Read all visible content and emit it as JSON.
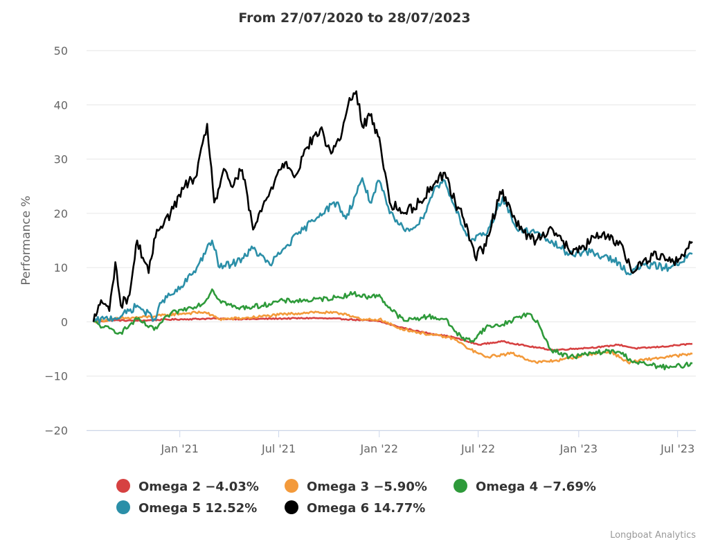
{
  "chart_data": {
    "type": "line",
    "title": "From 27/07/2020 to 28/07/2023",
    "xlabel": "",
    "ylabel": "Performance %",
    "ylim": [
      -20,
      50
    ],
    "yticks": [
      "−20",
      "−10",
      "0",
      "10",
      "20",
      "30",
      "40",
      "50"
    ],
    "ytick_values": [
      -20,
      -10,
      0,
      10,
      20,
      30,
      40,
      50
    ],
    "xlim": [
      "2020-07-27",
      "2023-07-28"
    ],
    "xticks": [
      {
        "label": "Jan '21",
        "date": "2021-01-01"
      },
      {
        "label": "Jul '21",
        "date": "2021-07-01"
      },
      {
        "label": "Jan '22",
        "date": "2022-01-01"
      },
      {
        "label": "Jul '22",
        "date": "2022-07-01"
      },
      {
        "label": "Jan '23",
        "date": "2023-01-01"
      },
      {
        "label": "Jul '23",
        "date": "2023-07-01"
      }
    ],
    "grid": true,
    "legend_position": "bottom",
    "series": [
      {
        "name": "Omega 2",
        "legend_label": "Omega 2 −4.03%",
        "final": "-4.03%",
        "color": "#d64141",
        "points": [
          [
            "2020-07-27",
            0
          ],
          [
            "2020-09-01",
            0.3
          ],
          [
            "2020-10-15",
            0.2
          ],
          [
            "2020-12-01",
            0.4
          ],
          [
            "2021-01-15",
            0.5
          ],
          [
            "2021-03-01",
            0.6
          ],
          [
            "2021-05-01",
            0.5
          ],
          [
            "2021-07-01",
            0.6
          ],
          [
            "2021-09-01",
            0.7
          ],
          [
            "2021-11-01",
            0.5
          ],
          [
            "2022-01-01",
            0.1
          ],
          [
            "2022-02-01",
            -0.8
          ],
          [
            "2022-03-15",
            -1.8
          ],
          [
            "2022-05-15",
            -2.8
          ],
          [
            "2022-07-01",
            -4.2
          ],
          [
            "2022-08-15",
            -3.6
          ],
          [
            "2022-10-01",
            -4.5
          ],
          [
            "2022-11-15",
            -5.2
          ],
          [
            "2023-01-01",
            -4.9
          ],
          [
            "2023-02-15",
            -4.6
          ],
          [
            "2023-03-15",
            -4.2
          ],
          [
            "2023-04-15",
            -4.9
          ],
          [
            "2023-06-01",
            -4.6
          ],
          [
            "2023-07-28",
            -4.03
          ]
        ]
      },
      {
        "name": "Omega 3",
        "legend_label": "Omega 3 −5.90%",
        "final": "-5.90%",
        "color": "#f39a3b",
        "points": [
          [
            "2020-07-27",
            0
          ],
          [
            "2020-09-01",
            0.5
          ],
          [
            "2020-11-15",
            1.0
          ],
          [
            "2021-01-01",
            1.5
          ],
          [
            "2021-02-15",
            1.8
          ],
          [
            "2021-03-15",
            0.5
          ],
          [
            "2021-05-01",
            0.7
          ],
          [
            "2021-07-01",
            1.3
          ],
          [
            "2021-09-01",
            1.8
          ],
          [
            "2021-11-01",
            1.5
          ],
          [
            "2021-12-01",
            0.3
          ],
          [
            "2022-01-01",
            0.5
          ],
          [
            "2022-02-01",
            -1.0
          ],
          [
            "2022-03-15",
            -2.0
          ],
          [
            "2022-05-15",
            -3.0
          ],
          [
            "2022-06-15",
            -5.0
          ],
          [
            "2022-07-15",
            -6.5
          ],
          [
            "2022-09-01",
            -5.8
          ],
          [
            "2022-10-15",
            -7.5
          ],
          [
            "2022-12-01",
            -7.0
          ],
          [
            "2023-01-15",
            -6.0
          ],
          [
            "2023-03-01",
            -5.5
          ],
          [
            "2023-04-01",
            -7.5
          ],
          [
            "2023-05-15",
            -6.8
          ],
          [
            "2023-07-28",
            -5.9
          ]
        ]
      },
      {
        "name": "Omega 4",
        "legend_label": "Omega 4 −7.69%",
        "final": "-7.69%",
        "color": "#2e9a3a",
        "points": [
          [
            "2020-07-27",
            0
          ],
          [
            "2020-08-15",
            -1.0
          ],
          [
            "2020-09-15",
            -2.0
          ],
          [
            "2020-10-15",
            0.5
          ],
          [
            "2020-11-15",
            -1.5
          ],
          [
            "2020-12-15",
            1.5
          ],
          [
            "2021-01-15",
            2.5
          ],
          [
            "2021-02-15",
            3.5
          ],
          [
            "2021-03-01",
            6.0
          ],
          [
            "2021-03-15",
            4.0
          ],
          [
            "2021-04-15",
            2.5
          ],
          [
            "2021-06-01",
            3.0
          ],
          [
            "2021-07-01",
            3.8
          ],
          [
            "2021-09-01",
            4.0
          ],
          [
            "2021-10-15",
            4.5
          ],
          [
            "2021-11-15",
            5.2
          ],
          [
            "2021-12-15",
            4.5
          ],
          [
            "2022-01-01",
            5.0
          ],
          [
            "2022-01-15",
            3.0
          ],
          [
            "2022-02-15",
            0.2
          ],
          [
            "2022-04-01",
            1.0
          ],
          [
            "2022-05-01",
            0.5
          ],
          [
            "2022-06-01",
            -3.0
          ],
          [
            "2022-06-20",
            -3.5
          ],
          [
            "2022-07-15",
            -1.0
          ],
          [
            "2022-08-15",
            -0.5
          ],
          [
            "2022-09-15",
            1.0
          ],
          [
            "2022-10-01",
            1.5
          ],
          [
            "2022-10-20",
            -0.5
          ],
          [
            "2022-11-10",
            -5.0
          ],
          [
            "2022-12-15",
            -6.5
          ],
          [
            "2023-01-15",
            -6.0
          ],
          [
            "2023-02-15",
            -5.5
          ],
          [
            "2023-03-15",
            -5.5
          ],
          [
            "2023-04-15",
            -7.5
          ],
          [
            "2023-05-15",
            -8.0
          ],
          [
            "2023-06-15",
            -8.5
          ],
          [
            "2023-07-28",
            -7.69
          ]
        ]
      },
      {
        "name": "Omega 5",
        "legend_label": "Omega 5 12.52%",
        "final": "12.52%",
        "color": "#2b8fa8",
        "points": [
          [
            "2020-07-27",
            0
          ],
          [
            "2020-08-15",
            0.5
          ],
          [
            "2020-09-15",
            1.0
          ],
          [
            "2020-10-15",
            3.0
          ],
          [
            "2020-11-15",
            0.5
          ],
          [
            "2020-12-01",
            4.0
          ],
          [
            "2021-01-01",
            6.0
          ],
          [
            "2021-02-01",
            10.0
          ],
          [
            "2021-03-01",
            15.0
          ],
          [
            "2021-03-15",
            10.0
          ],
          [
            "2021-04-15",
            11.0
          ],
          [
            "2021-05-15",
            13.5
          ],
          [
            "2021-06-15",
            10.5
          ],
          [
            "2021-07-15",
            14.0
          ],
          [
            "2021-08-15",
            17.0
          ],
          [
            "2021-09-15",
            20.0
          ],
          [
            "2021-10-15",
            22.0
          ],
          [
            "2021-11-01",
            19.0
          ],
          [
            "2021-12-01",
            26.5
          ],
          [
            "2021-12-15",
            22.0
          ],
          [
            "2022-01-01",
            26.0
          ],
          [
            "2022-01-20",
            20.0
          ],
          [
            "2022-02-15",
            17.0
          ],
          [
            "2022-03-15",
            18.0
          ],
          [
            "2022-04-15",
            25.0
          ],
          [
            "2022-05-01",
            26.0
          ],
          [
            "2022-05-20",
            21.0
          ],
          [
            "2022-06-15",
            15.0
          ],
          [
            "2022-07-15",
            16.0
          ],
          [
            "2022-08-15",
            23.0
          ],
          [
            "2022-09-10",
            17.0
          ],
          [
            "2022-10-15",
            16.5
          ],
          [
            "2022-11-15",
            14.5
          ],
          [
            "2022-12-15",
            12.5
          ],
          [
            "2023-01-15",
            13.0
          ],
          [
            "2023-02-15",
            12.0
          ],
          [
            "2023-03-15",
            11.0
          ],
          [
            "2023-04-01",
            9.0
          ],
          [
            "2023-05-01",
            10.5
          ],
          [
            "2023-06-15",
            10.0
          ],
          [
            "2023-07-28",
            12.52
          ]
        ]
      },
      {
        "name": "Omega 6",
        "legend_label": "Omega 6 14.77%",
        "final": "14.77%",
        "color": "#000000",
        "points": [
          [
            "2020-07-27",
            0
          ],
          [
            "2020-08-10",
            4.0
          ],
          [
            "2020-08-25",
            2.0
          ],
          [
            "2020-09-05",
            11.0
          ],
          [
            "2020-09-15",
            3.0
          ],
          [
            "2020-10-01",
            5.0
          ],
          [
            "2020-10-15",
            15.0
          ],
          [
            "2020-11-05",
            9.0
          ],
          [
            "2020-11-20",
            17.0
          ],
          [
            "2020-12-15",
            20.0
          ],
          [
            "2021-01-10",
            25.0
          ],
          [
            "2021-02-01",
            27.0
          ],
          [
            "2021-02-20",
            36.5
          ],
          [
            "2021-03-05",
            22.0
          ],
          [
            "2021-03-25",
            28.0
          ],
          [
            "2021-04-05",
            25.0
          ],
          [
            "2021-04-25",
            28.0
          ],
          [
            "2021-05-15",
            17.0
          ],
          [
            "2021-06-15",
            24.0
          ],
          [
            "2021-07-01",
            28.0
          ],
          [
            "2021-07-15",
            29.5
          ],
          [
            "2021-08-01",
            27.0
          ],
          [
            "2021-08-20",
            32.0
          ],
          [
            "2021-09-15",
            35.5
          ],
          [
            "2021-10-05",
            31.0
          ],
          [
            "2021-10-25",
            35.0
          ],
          [
            "2021-11-05",
            40.0
          ],
          [
            "2021-11-20",
            42.5
          ],
          [
            "2021-12-01",
            36.0
          ],
          [
            "2021-12-15",
            38.0
          ],
          [
            "2022-01-01",
            34.0
          ],
          [
            "2022-01-20",
            22.0
          ],
          [
            "2022-02-15",
            20.0
          ],
          [
            "2022-03-15",
            22.0
          ],
          [
            "2022-04-15",
            26.0
          ],
          [
            "2022-05-01",
            27.5
          ],
          [
            "2022-05-20",
            22.0
          ],
          [
            "2022-06-10",
            18.0
          ],
          [
            "2022-06-25",
            12.0
          ],
          [
            "2022-07-15",
            14.0
          ],
          [
            "2022-08-10",
            24.0
          ],
          [
            "2022-08-25",
            22.0
          ],
          [
            "2022-09-15",
            17.0
          ],
          [
            "2022-10-15",
            15.0
          ],
          [
            "2022-11-10",
            17.5
          ],
          [
            "2022-12-01",
            15.0
          ],
          [
            "2022-12-20",
            12.5
          ],
          [
            "2023-01-10",
            14.0
          ],
          [
            "2023-02-01",
            15.5
          ],
          [
            "2023-03-01",
            16.0
          ],
          [
            "2023-03-25",
            13.0
          ],
          [
            "2023-04-10",
            9.0
          ],
          [
            "2023-05-01",
            11.5
          ],
          [
            "2023-06-01",
            12.5
          ],
          [
            "2023-07-01",
            11.0
          ],
          [
            "2023-07-28",
            14.77
          ]
        ]
      }
    ]
  },
  "credit": "Longboat Analytics"
}
